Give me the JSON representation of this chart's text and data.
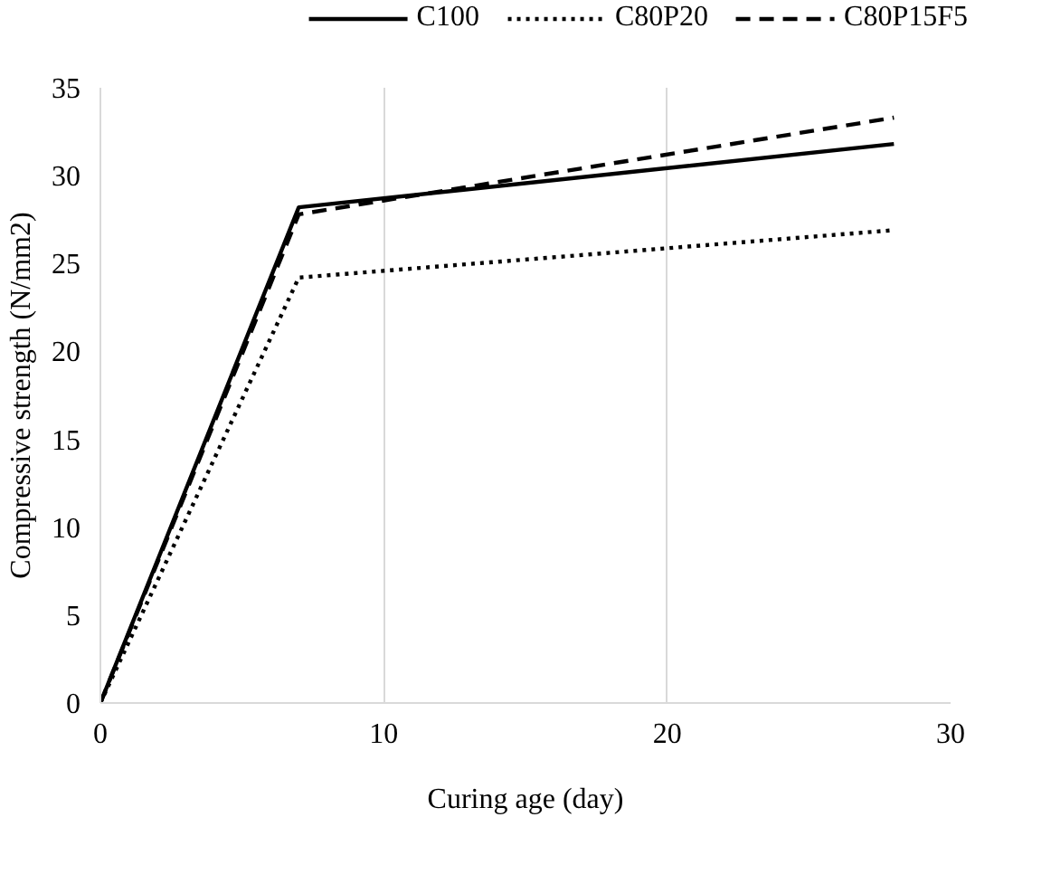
{
  "chart_data": {
    "type": "line",
    "xlabel": "Curing age (day)",
    "ylabel": "Compressive strength (N/mm2)",
    "x": [
      0,
      7,
      28
    ],
    "series": [
      {
        "name": "C100",
        "color": "#000000",
        "line_style": "solid",
        "values": [
          0,
          28.2,
          31.8
        ]
      },
      {
        "name": "C80P20",
        "color": "#000000",
        "line_style": "dotted",
        "values": [
          0,
          24.2,
          26.9
        ]
      },
      {
        "name": "C80P15F5",
        "color": "#000000",
        "line_style": "dashed",
        "values": [
          0,
          27.8,
          33.3
        ]
      }
    ],
    "xlim": [
      0,
      30
    ],
    "xticks": [
      0,
      10,
      20,
      30
    ],
    "ylim": [
      0,
      35
    ],
    "yticks": [
      0,
      5,
      10,
      15,
      20,
      25,
      30,
      35
    ],
    "grid": "x",
    "legend": "top",
    "marker": "none"
  }
}
